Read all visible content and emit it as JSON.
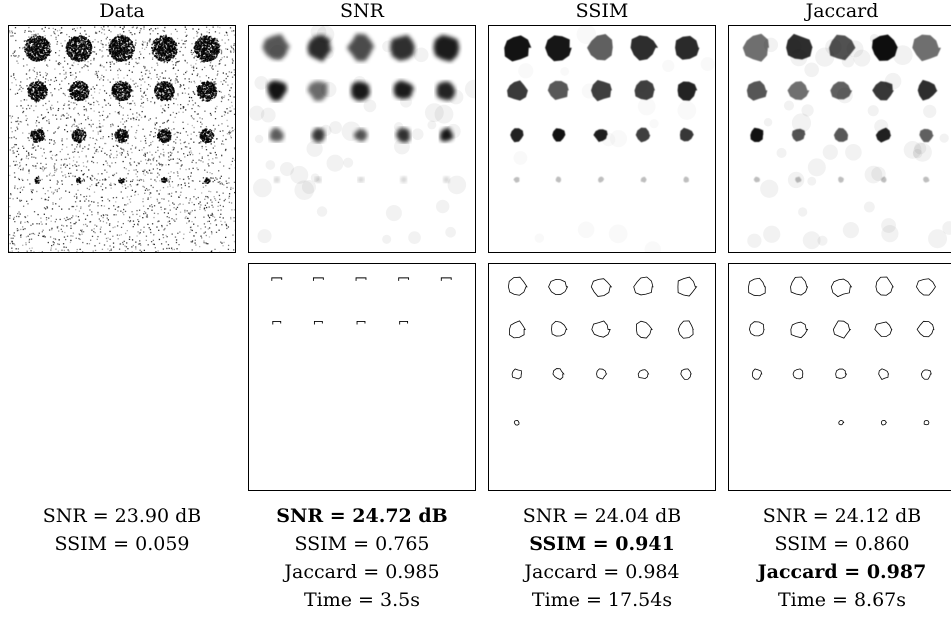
{
  "figure": {
    "columns": [
      {
        "title": "Data",
        "metrics": [
          {
            "text": "SNR = 23.90 dB",
            "best": false
          },
          {
            "text": "SSIM = 0.059",
            "best": false
          }
        ]
      },
      {
        "title": "SNR",
        "metrics": [
          {
            "text": "SNR = 24.72 dB",
            "best": true
          },
          {
            "text": "SSIM = 0.765",
            "best": false
          },
          {
            "text": "Jaccard = 0.985",
            "best": false
          },
          {
            "text": "Time = 3.5s",
            "best": false
          }
        ]
      },
      {
        "title": "SSIM",
        "metrics": [
          {
            "text": "SNR = 24.04 dB",
            "best": false
          },
          {
            "text": "SSIM = 0.941",
            "best": true
          },
          {
            "text": "Jaccard = 0.984",
            "best": false
          },
          {
            "text": "Time = 17.54s",
            "best": false
          }
        ]
      },
      {
        "title": "Jaccard",
        "metrics": [
          {
            "text": "SNR = 24.12 dB",
            "best": false
          },
          {
            "text": "SSIM = 0.860",
            "best": false
          },
          {
            "text": "Jaccard = 0.987",
            "best": true
          },
          {
            "text": "Time = 8.67s",
            "best": false
          }
        ]
      }
    ]
  }
}
